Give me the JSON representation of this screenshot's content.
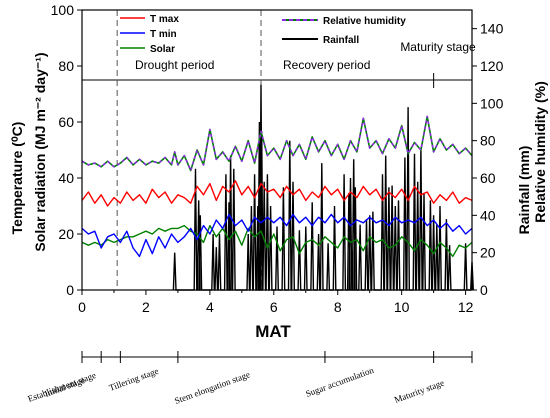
{
  "chart_data": {
    "type": "line",
    "x_label": "MAT",
    "x_range": [
      0,
      12.2
    ],
    "x_ticks": [
      "0",
      "2",
      "4",
      "6",
      "8",
      "10",
      "12"
    ],
    "y_left_label_1": "Temperature (⁰C)",
    "y_left_label_2": "Solar radiation (MJ m⁻² day⁻¹)",
    "y_left_range": [
      0,
      100
    ],
    "y_left_ticks": [
      "0",
      "20",
      "40",
      "60",
      "80",
      "100"
    ],
    "y_right_label_1": "Rainfall (mm)",
    "y_right_label_2": "Relative humidity (%)",
    "y_right_range": [
      0,
      150
    ],
    "y_right_ticks": [
      "0",
      "20",
      "40",
      "60",
      "80",
      "100",
      "120",
      "140"
    ],
    "legend_left": [
      {
        "label": "T max",
        "color": "#ff0000"
      },
      {
        "label": "T min",
        "color": "#0000ff"
      },
      {
        "label": "Solar",
        "color": "#008000"
      }
    ],
    "legend_right": [
      {
        "label": "Relative humidity",
        "color": "#8b2be2"
      },
      {
        "label": "Rainfall",
        "color": "#000000"
      }
    ],
    "periods": [
      {
        "label": "Drought period"
      },
      {
        "label": "Recovery period"
      },
      {
        "label": "Maturity stage"
      }
    ],
    "period_boundaries_mat": [
      1.1,
      5.6,
      11.0
    ],
    "stages": [
      {
        "label": "Initial stage",
        "tick": 0
      },
      {
        "label": "Establishment stage",
        "tick": 0.6
      },
      {
        "label": "Tillering stage",
        "tick": 1.2
      },
      {
        "label": "Stem elongation stage",
        "tick": 3.0
      },
      {
        "label": "Sugar accumulation",
        "tick": 7.6
      },
      {
        "label": "Maturity stage",
        "tick": 11.0
      },
      {
        "label": "",
        "tick": 12.2
      }
    ],
    "series": [
      {
        "name": "Relative humidity",
        "axis": "right",
        "style": "dashed",
        "x": [
          0,
          0.2,
          0.4,
          0.6,
          0.8,
          1.0,
          1.2,
          1.4,
          1.6,
          1.8,
          2.0,
          2.2,
          2.4,
          2.6,
          2.8,
          2.9,
          3.0,
          3.2,
          3.4,
          3.6,
          3.8,
          4.0,
          4.2,
          4.4,
          4.6,
          4.8,
          5.0,
          5.2,
          5.4,
          5.6,
          5.8,
          6.0,
          6.2,
          6.4,
          6.6,
          6.8,
          7.0,
          7.2,
          7.4,
          7.6,
          7.8,
          8.0,
          8.2,
          8.4,
          8.6,
          8.8,
          9.0,
          9.2,
          9.4,
          9.6,
          9.8,
          10.0,
          10.2,
          10.4,
          10.6,
          10.8,
          11.0,
          11.2,
          11.4,
          11.6,
          11.8,
          12.0,
          12.2
        ],
        "y": [
          69,
          67,
          68,
          66,
          69,
          66,
          68,
          71,
          67,
          70,
          67,
          69,
          68,
          71,
          67,
          74,
          67,
          72,
          64,
          75,
          67,
          86,
          70,
          74,
          69,
          77,
          69,
          80,
          68,
          85,
          72,
          76,
          70,
          80,
          72,
          78,
          70,
          82,
          74,
          80,
          72,
          78,
          70,
          80,
          74,
          92,
          76,
          80,
          73,
          81,
          76,
          88,
          73,
          79,
          75,
          93,
          74,
          81,
          75,
          78,
          73,
          76,
          72
        ]
      },
      {
        "name": "T max",
        "axis": "left",
        "x": [
          0,
          0.2,
          0.4,
          0.6,
          0.8,
          1.0,
          1.2,
          1.4,
          1.6,
          1.8,
          2.0,
          2.2,
          2.4,
          2.6,
          2.8,
          3.0,
          3.2,
          3.4,
          3.6,
          3.8,
          4.0,
          4.2,
          4.4,
          4.6,
          4.8,
          5.0,
          5.2,
          5.4,
          5.6,
          5.8,
          6.0,
          6.2,
          6.4,
          6.6,
          6.8,
          7.0,
          7.2,
          7.4,
          7.6,
          7.8,
          8.0,
          8.2,
          8.4,
          8.6,
          8.8,
          9.0,
          9.2,
          9.4,
          9.6,
          9.8,
          10.0,
          10.2,
          10.4,
          10.6,
          10.8,
          11.0,
          11.2,
          11.4,
          11.6,
          11.8,
          12.0,
          12.2
        ],
        "y": [
          32,
          35,
          31,
          34,
          30,
          33,
          31,
          35,
          32,
          34,
          31,
          36,
          33,
          35,
          31,
          34,
          33,
          31,
          37,
          34,
          38,
          32,
          37,
          35,
          39,
          34,
          37,
          33,
          38,
          35,
          36,
          33,
          37,
          34,
          36,
          32,
          35,
          33,
          37,
          34,
          36,
          32,
          35,
          33,
          37,
          34,
          36,
          32,
          35,
          33,
          36,
          32,
          37,
          34,
          35,
          31,
          34,
          32,
          35,
          31,
          33,
          32
        ]
      },
      {
        "name": "T min",
        "axis": "left",
        "x": [
          0,
          0.2,
          0.4,
          0.6,
          0.8,
          1.0,
          1.2,
          1.4,
          1.6,
          1.8,
          2.0,
          2.2,
          2.4,
          2.6,
          2.8,
          3.0,
          3.2,
          3.4,
          3.6,
          3.8,
          4.0,
          4.2,
          4.4,
          4.6,
          4.8,
          5.0,
          5.2,
          5.4,
          5.6,
          5.8,
          6.0,
          6.2,
          6.4,
          6.6,
          6.8,
          7.0,
          7.2,
          7.4,
          7.6,
          7.8,
          8.0,
          8.2,
          8.4,
          8.6,
          8.8,
          9.0,
          9.2,
          9.4,
          9.6,
          9.8,
          10.0,
          10.2,
          10.4,
          10.6,
          10.8,
          11.0,
          11.2,
          11.4,
          11.6,
          11.8,
          12.0,
          12.2
        ],
        "y": [
          22,
          20,
          21,
          15,
          19,
          20,
          17,
          21,
          15,
          12,
          18,
          13,
          19,
          15,
          20,
          17,
          19,
          22,
          18,
          23,
          20,
          25,
          22,
          27,
          23,
          25,
          21,
          26,
          24,
          26,
          24,
          26,
          23,
          27,
          24,
          26,
          23,
          26,
          24,
          27,
          24,
          26,
          23,
          25,
          24,
          26,
          24,
          25,
          23,
          26,
          24,
          25,
          24,
          26,
          23,
          25,
          22,
          24,
          21,
          23,
          20,
          22
        ]
      },
      {
        "name": "Solar",
        "axis": "left",
        "x": [
          0,
          0.2,
          0.4,
          0.6,
          0.8,
          1.0,
          1.2,
          1.4,
          1.6,
          1.8,
          2.0,
          2.2,
          2.4,
          2.6,
          2.8,
          3.0,
          3.2,
          3.4,
          3.6,
          3.8,
          4.0,
          4.2,
          4.4,
          4.6,
          4.8,
          5.0,
          5.2,
          5.4,
          5.6,
          5.8,
          6.0,
          6.2,
          6.4,
          6.6,
          6.8,
          7.0,
          7.2,
          7.4,
          7.6,
          7.8,
          8.0,
          8.2,
          8.4,
          8.6,
          8.8,
          9.0,
          9.2,
          9.4,
          9.6,
          9.8,
          10.0,
          10.2,
          10.4,
          10.6,
          10.8,
          11.0,
          11.2,
          11.4,
          11.6,
          11.8,
          12.0,
          12.2
        ],
        "y": [
          17,
          16,
          17,
          16,
          18,
          17,
          18,
          19,
          19,
          20,
          21,
          20,
          22,
          21,
          22,
          22,
          23,
          21,
          20,
          17,
          23,
          19,
          22,
          18,
          21,
          16,
          22,
          19,
          21,
          15,
          20,
          14,
          18,
          19,
          13,
          17,
          18,
          16,
          19,
          17,
          15,
          19,
          17,
          18,
          14,
          19,
          17,
          18,
          15,
          16,
          19,
          17,
          14,
          18,
          16,
          13,
          17,
          15,
          12,
          16,
          15,
          17
        ]
      },
      {
        "name": "Rainfall",
        "axis": "right",
        "x": [
          2.9,
          3.55,
          3.65,
          3.7,
          4.1,
          4.2,
          4.3,
          4.5,
          4.6,
          4.65,
          4.75,
          5.2,
          5.3,
          5.4,
          5.5,
          5.55,
          5.6,
          5.62,
          5.7,
          5.8,
          5.9,
          6.1,
          6.3,
          6.5,
          6.6,
          6.8,
          7.0,
          7.2,
          7.4,
          7.5,
          7.7,
          7.9,
          8.2,
          8.35,
          8.4,
          8.5,
          8.55,
          8.7,
          8.9,
          9.0,
          9.1,
          9.4,
          9.5,
          9.6,
          9.7,
          9.8,
          9.9,
          10.1,
          10.2,
          10.4,
          10.5,
          10.6,
          10.7,
          10.9,
          11.0,
          11.1,
          11.2,
          11.4,
          11.5,
          12.0,
          12.2
        ],
        "y": [
          20,
          65,
          48,
          40,
          30,
          23,
          30,
          62,
          47,
          72,
          65,
          30,
          45,
          62,
          45,
          90,
          110,
          85,
          58,
          62,
          45,
          34,
          55,
          80,
          58,
          32,
          34,
          47,
          30,
          68,
          25,
          45,
          62,
          52,
          60,
          70,
          55,
          35,
          38,
          40,
          42,
          62,
          72,
          55,
          56,
          45,
          48,
          71,
          98,
          73,
          58,
          76,
          52,
          48,
          40,
          35,
          45,
          38,
          24,
          25,
          15
        ]
      }
    ]
  }
}
